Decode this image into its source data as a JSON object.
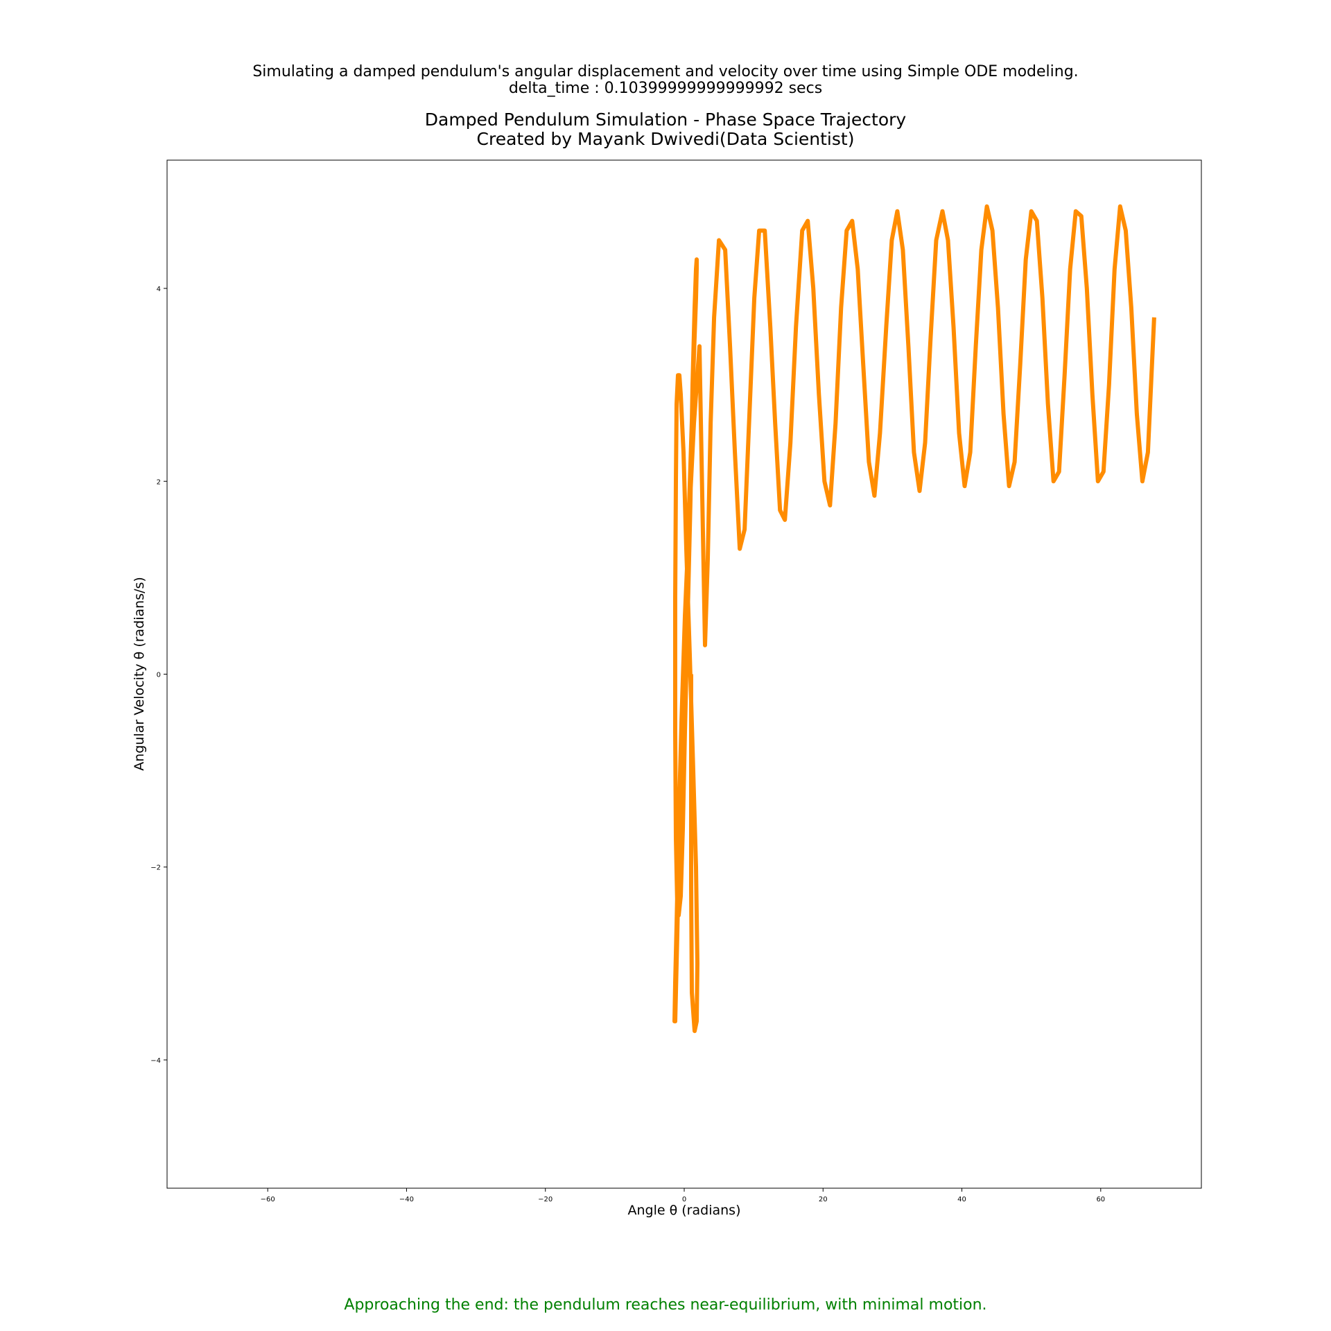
{
  "header": {
    "suptitle_line1": "Simulating a damped pendulum's angular displacement and velocity over time using Simple ODE modeling.",
    "suptitle_line2": "delta_time : 0.10399999999999992 secs",
    "title_line1": "Damped Pendulum Simulation - Phase Space Trajectory",
    "title_line2": "Created by Mayank Dwivedi(Data Scientist)"
  },
  "caption": {
    "text": "Approaching the end: the pendulum reaches near-equilibrium, with minimal motion.",
    "color": "#008000"
  },
  "chart_data": {
    "type": "line",
    "xlabel": "Angle θ (radians)",
    "ylabel": "Angular Velocity θ (radians/s)",
    "xlim": [
      -74.5,
      74.5
    ],
    "ylim": [
      -5.33,
      5.33
    ],
    "xticks": [
      {
        "value": -60,
        "label": "−60"
      },
      {
        "value": -40,
        "label": "−40"
      },
      {
        "value": -20,
        "label": "−20"
      },
      {
        "value": 0,
        "label": "0"
      },
      {
        "value": 20,
        "label": "20"
      },
      {
        "value": 40,
        "label": "40"
      },
      {
        "value": 60,
        "label": "60"
      }
    ],
    "yticks": [
      {
        "value": -4,
        "label": "−4"
      },
      {
        "value": -2,
        "label": "−2"
      },
      {
        "value": 0,
        "label": "0"
      },
      {
        "value": 2,
        "label": "2"
      },
      {
        "value": 4,
        "label": "4"
      }
    ],
    "grid": false,
    "line_color": "#ff8c00",
    "series": [
      {
        "x": [
          1.0,
          1.0,
          1.0,
          1.1,
          1.5,
          1.8,
          1.9,
          1.7,
          1.3,
          0.8,
          0.3,
          -0.1,
          -0.5,
          -0.7,
          -0.9,
          -1.1,
          -1.2,
          -1.3,
          -1.3,
          -1.2,
          -1.0,
          -0.8,
          -0.5,
          -0.2,
          0.1,
          0.5,
          0.9,
          1.2,
          1.5,
          1.7,
          1.8,
          1.8,
          1.7,
          1.4,
          1.0,
          0.5,
          0.0,
          -0.4,
          -0.8,
          -1.0,
          -1.2,
          -1.3,
          -1.4,
          -1.3,
          -1.1,
          -0.8,
          -0.4,
          0.1,
          0.7,
          1.4,
          2.2,
          3.0,
          3.4,
          3.8,
          4.3,
          5.0,
          5.9,
          6.6,
          7.3,
          8.0,
          8.7,
          9.4,
          10.1,
          10.8,
          11.6,
          12.4,
          13.1,
          13.8,
          14.5,
          15.3,
          16.1,
          17.0,
          17.8,
          18.6,
          19.4,
          20.2,
          21.0,
          21.8,
          22.6,
          23.4,
          24.2,
          25.0,
          25.8,
          26.6,
          27.4,
          28.2,
          29.1,
          29.9,
          30.7,
          31.5,
          32.3,
          33.1,
          33.9,
          34.7,
          35.5,
          36.3,
          37.2,
          38.0,
          38.8,
          39.6,
          40.4,
          41.2,
          42.0,
          42.8,
          43.6,
          44.4,
          45.2,
          46.0,
          46.8,
          47.6,
          48.4,
          49.2,
          50.0,
          50.8,
          51.6,
          52.4,
          53.2,
          54.0,
          54.8,
          55.6,
          56.4,
          57.2,
          58.0,
          58.8,
          59.6,
          60.4,
          61.2,
          62.0,
          62.8,
          63.6,
          64.4,
          65.2,
          66.0,
          66.8,
          67.7
        ],
        "y": [
          0.0,
          -1.0,
          -2.2,
          -3.3,
          -3.7,
          -3.6,
          -3.0,
          -2.0,
          -1.0,
          0.2,
          1.3,
          2.3,
          2.9,
          3.1,
          3.1,
          2.8,
          2.0,
          0.8,
          -0.6,
          -1.7,
          -2.4,
          -2.5,
          -2.3,
          -1.6,
          -0.6,
          0.6,
          1.8,
          3.0,
          3.8,
          4.2,
          4.3,
          4.2,
          3.9,
          3.3,
          2.4,
          1.3,
          0.2,
          -1.0,
          -2.0,
          -2.7,
          -3.3,
          -3.6,
          -3.6,
          -3.2,
          -2.6,
          -1.6,
          -0.5,
          0.6,
          1.6,
          2.6,
          3.4,
          0.3,
          1.2,
          2.6,
          3.7,
          4.5,
          4.4,
          3.4,
          2.3,
          1.3,
          1.5,
          2.7,
          3.9,
          4.6,
          4.6,
          3.6,
          2.6,
          1.7,
          1.6,
          2.4,
          3.6,
          4.6,
          4.7,
          4.0,
          2.9,
          2.0,
          1.75,
          2.6,
          3.8,
          4.6,
          4.7,
          4.2,
          3.2,
          2.2,
          1.85,
          2.5,
          3.6,
          4.5,
          4.8,
          4.4,
          3.4,
          2.3,
          1.9,
          2.4,
          3.5,
          4.5,
          4.8,
          4.5,
          3.6,
          2.5,
          1.95,
          2.3,
          3.4,
          4.4,
          4.85,
          4.6,
          3.8,
          2.7,
          1.95,
          2.2,
          3.2,
          4.3,
          4.8,
          4.7,
          3.9,
          2.8,
          2.0,
          2.1,
          3.1,
          4.2,
          4.8,
          4.75,
          4.0,
          2.9,
          2.0,
          2.1,
          3.0,
          4.2,
          4.85,
          4.6,
          3.8,
          2.7,
          2.0,
          2.3,
          3.7
        ]
      }
    ]
  }
}
